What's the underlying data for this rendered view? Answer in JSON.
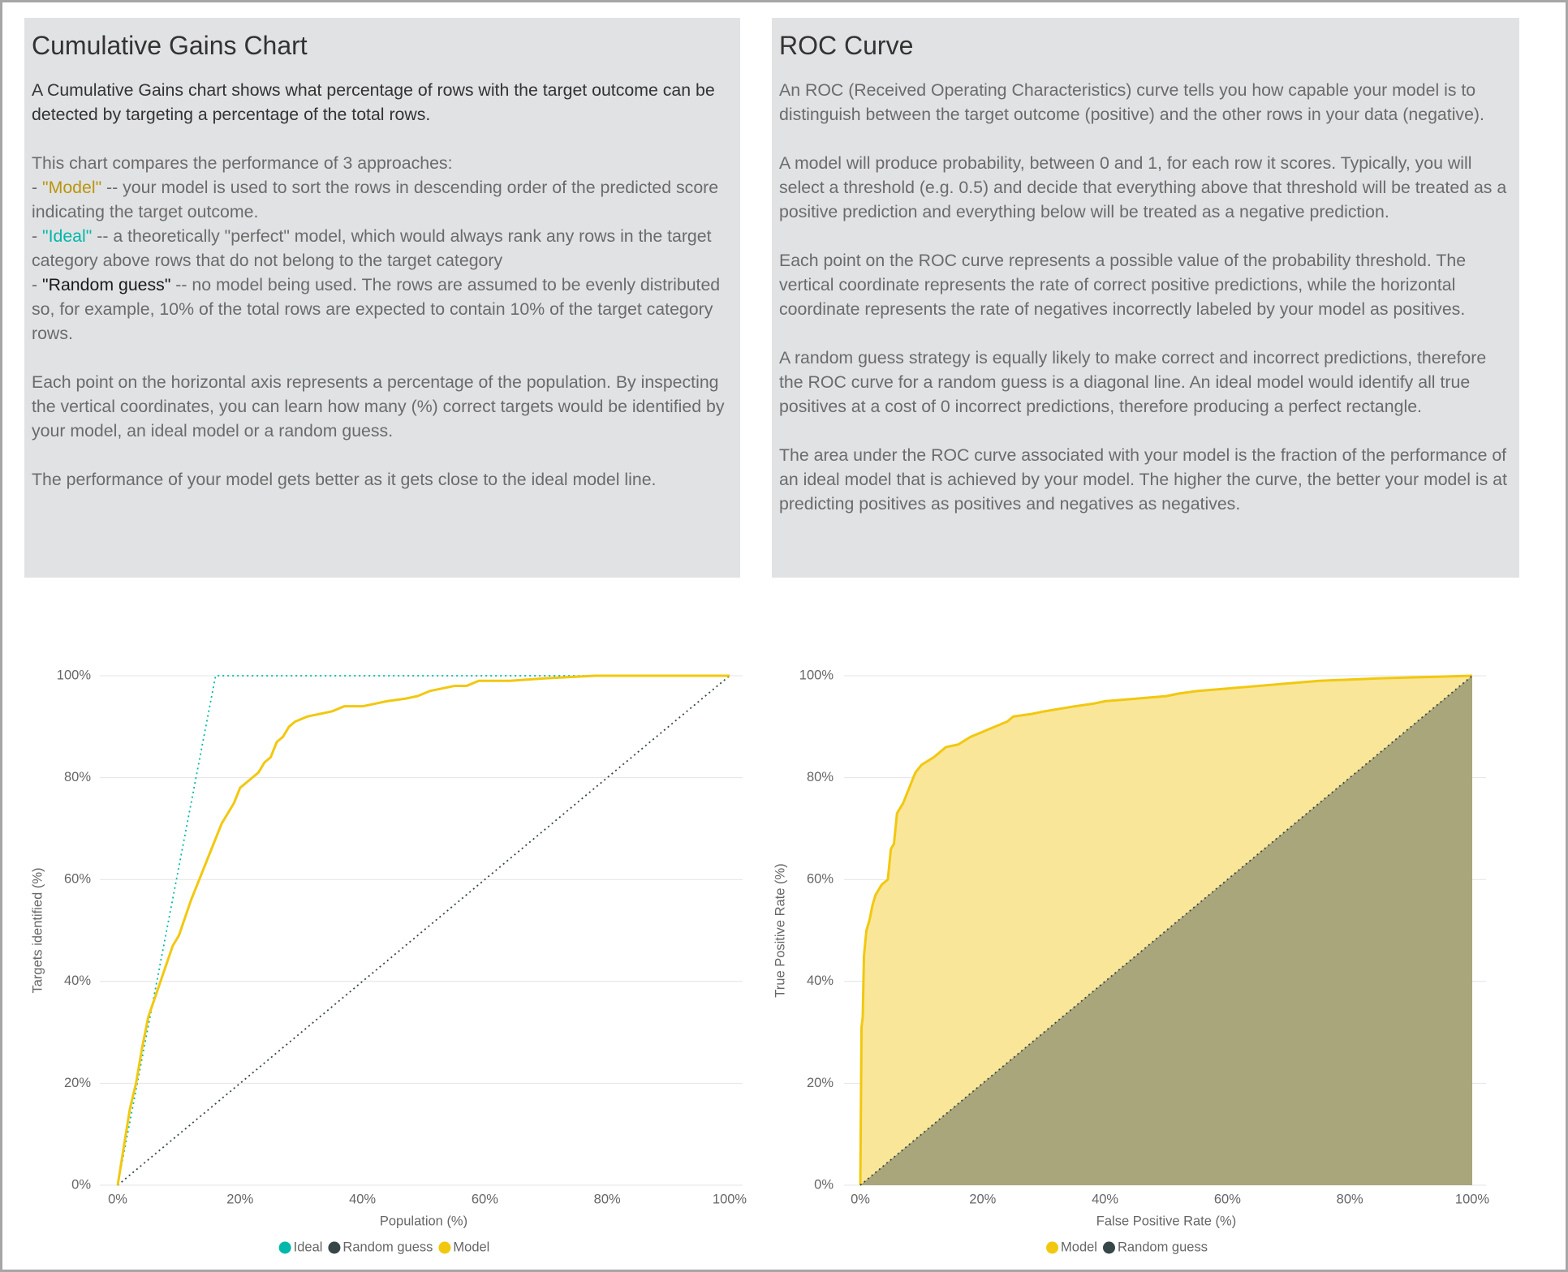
{
  "panels": [
    {
      "title": "Cumulative Gains Chart",
      "intro": "A Cumulative Gains chart shows what percentage of rows with the target outcome can be detected by targeting a percentage of the total rows.",
      "list_heading": "This chart compares the performance of 3 approaches:",
      "items": [
        {
          "marker": "- ",
          "name": "\"Model\"",
          "color": "#b8960a",
          "text": " -- your model is used to sort the rows in descending order of the predicted score indicating the target outcome."
        },
        {
          "marker": "- ",
          "name": "\"Ideal\"",
          "color": "#01b8aa",
          "text": " -- a theoretically \"perfect\" model, which would always rank any rows in the target category above rows that do not belong to the target category"
        },
        {
          "marker": "- ",
          "name": "\"Random guess\"",
          "color": "#1a1a1a",
          "text": " -- no model being used. The rows are assumed to be evenly distributed so, for example, 10% of the total rows are expected to contain 10% of the target category rows."
        }
      ],
      "paragraphs": [
        "Each point on the horizontal axis represents a percentage of the population. By inspecting the vertical coordinates, you can learn how many (%) correct targets would be identified by your model, an ideal model or a random guess.",
        "The performance of your model gets better as it gets close to the ideal model line."
      ]
    },
    {
      "title": "ROC Curve",
      "paragraphs": [
        "An ROC (Received Operating Characteristics) curve tells you how capable your model is to distinguish between the target outcome (positive) and the other rows in your data (negative).",
        "A model will produce probability, between 0 and 1, for each row it scores. Typically, you will select a threshold (e.g. 0.5) and decide that everything above that threshold will be treated as a positive prediction and everything below will be treated as a negative prediction.",
        "Each point on the ROC curve represents a possible value of the probability threshold. The vertical coordinate represents the rate of correct positive predictions, while the horizontal coordinate represents the rate of negatives incorrectly labeled by your model as positives.",
        "A random guess strategy is equally likely to make correct and incorrect predictions, therefore the ROC curve for a random guess is a diagonal line. An ideal model would identify all true positives at a cost of 0 incorrect predictions, therefore producing a perfect rectangle.",
        "The area under the ROC curve associated with your model is the fraction of the performance of an ideal model that is achieved by your model. The higher the curve, the better your model is at predicting positives as positives and negatives as negatives."
      ]
    }
  ],
  "chart_data": [
    {
      "type": "line",
      "x_label": "Population (%)",
      "y_label": "Targets identified (%)",
      "xlim": [
        0,
        100
      ],
      "ylim": [
        0,
        100
      ],
      "grid": true,
      "xticks": [
        {
          "value": 0,
          "label": "0%"
        },
        {
          "value": 20,
          "label": "20%"
        },
        {
          "value": 40,
          "label": "40%"
        },
        {
          "value": 60,
          "label": "60%"
        },
        {
          "value": 80,
          "label": "80%"
        },
        {
          "value": 100,
          "label": "100%"
        }
      ],
      "yticks": [
        {
          "value": 0,
          "label": "0%"
        },
        {
          "value": 20,
          "label": "20%"
        },
        {
          "value": 40,
          "label": "40%"
        },
        {
          "value": 60,
          "label": "60%"
        },
        {
          "value": 80,
          "label": "80%"
        },
        {
          "value": 100,
          "label": "100%"
        }
      ],
      "series": [
        {
          "name": "Ideal",
          "color": "#01b8aa",
          "style": "dotted",
          "x": [
            0,
            16,
            100
          ],
          "values": [
            0,
            100,
            100
          ]
        },
        {
          "name": "Random guess",
          "color": "#374649",
          "style": "dotted",
          "x": [
            0,
            100
          ],
          "values": [
            0,
            100
          ]
        },
        {
          "name": "Model",
          "color": "#f2c80f",
          "style": "solid",
          "x": [
            0,
            2,
            3,
            4,
            5,
            7,
            9,
            10,
            12,
            14,
            16,
            17,
            19,
            20,
            22,
            23,
            24,
            25,
            26,
            27,
            28,
            29,
            31,
            33,
            35,
            37,
            40,
            42,
            44,
            47,
            49,
            51,
            55,
            57,
            59,
            64,
            70,
            78,
            100
          ],
          "values": [
            0,
            15,
            20,
            27,
            33,
            40,
            47,
            49,
            56,
            62,
            68,
            71,
            75,
            78,
            80,
            81,
            83,
            84,
            87,
            88,
            90,
            91,
            92,
            92.5,
            93,
            94,
            94,
            94.5,
            95,
            95.5,
            96,
            97,
            98,
            98,
            99,
            99,
            99.5,
            100,
            100
          ]
        }
      ]
    },
    {
      "type": "area",
      "x_label": "False Positive Rate (%)",
      "y_label": "True Positive Rate (%)",
      "xlim": [
        0,
        100
      ],
      "ylim": [
        0,
        100
      ],
      "grid": true,
      "xticks": [
        {
          "value": 0,
          "label": "0%"
        },
        {
          "value": 20,
          "label": "20%"
        },
        {
          "value": 40,
          "label": "40%"
        },
        {
          "value": 60,
          "label": "60%"
        },
        {
          "value": 80,
          "label": "80%"
        },
        {
          "value": 100,
          "label": "100%"
        }
      ],
      "yticks": [
        {
          "value": 0,
          "label": "0%"
        },
        {
          "value": 20,
          "label": "20%"
        },
        {
          "value": 40,
          "label": "40%"
        },
        {
          "value": 60,
          "label": "60%"
        },
        {
          "value": 80,
          "label": "80%"
        },
        {
          "value": 100,
          "label": "100%"
        }
      ],
      "series": [
        {
          "name": "Model",
          "color": "#f2c80f",
          "fill": "#f9e699",
          "style": "solid",
          "x": [
            0,
            0.2,
            0.4,
            0.6,
            1,
            1.5,
            2,
            2.5,
            3.5,
            4.5,
            5,
            5.5,
            6,
            7,
            8,
            9,
            10,
            12,
            14,
            16,
            18,
            20,
            22,
            24,
            25,
            28,
            30,
            35,
            38,
            40,
            45,
            50,
            52,
            55,
            60,
            65,
            70,
            75,
            85,
            100
          ],
          "values": [
            0,
            31,
            33,
            45,
            50,
            52,
            55,
            57,
            59,
            60,
            66,
            67,
            73,
            75,
            78,
            81,
            82.5,
            84,
            86,
            86.5,
            88,
            89,
            90,
            91,
            92,
            92.5,
            93,
            94,
            94.5,
            95,
            95.5,
            96,
            96.5,
            97,
            97.5,
            98,
            98.5,
            99,
            99.5,
            100
          ]
        },
        {
          "name": "Random guess",
          "color": "#374649",
          "fill": "#a8a67a",
          "style": "dotted",
          "x": [
            0,
            100
          ],
          "values": [
            0,
            100
          ]
        }
      ]
    }
  ]
}
